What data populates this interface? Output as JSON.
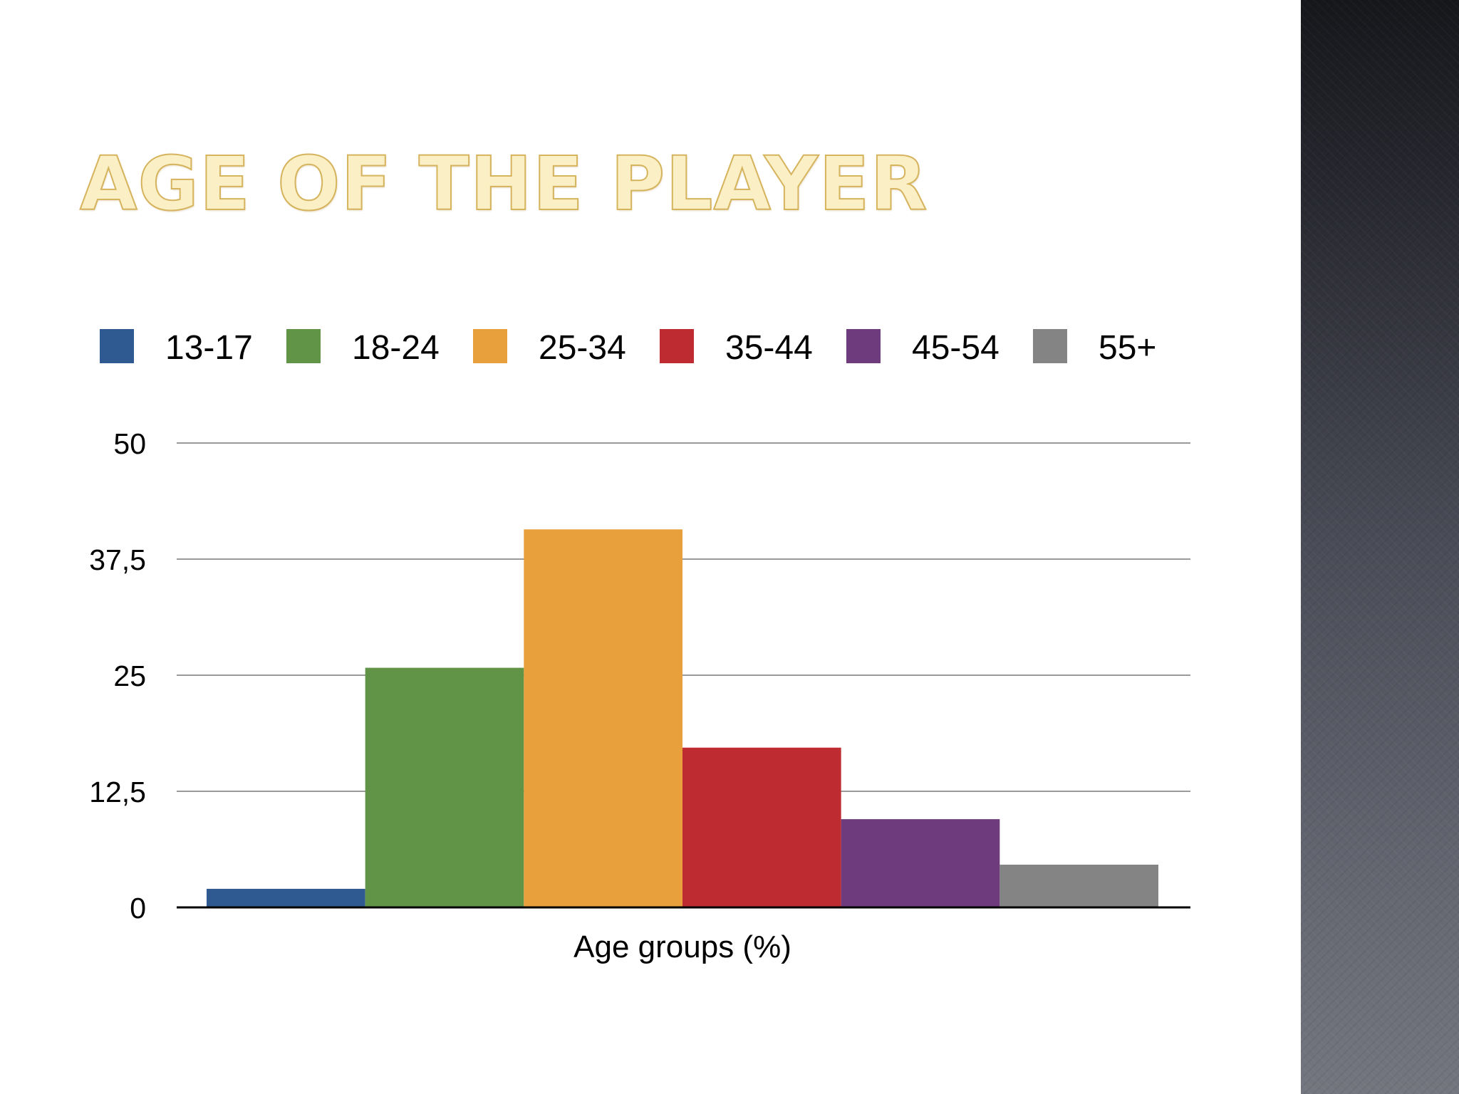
{
  "slide": {
    "title": "AGE OF THE PLAYER"
  },
  "chart_data": {
    "type": "bar",
    "xlabel": "Age groups (%)",
    "ylabel": "",
    "ylim": [
      0,
      50
    ],
    "yticks": [
      0,
      12.5,
      25,
      37.5,
      50
    ],
    "ytick_labels": [
      "0",
      "12,5",
      "25",
      "37,5",
      "50"
    ],
    "grid": true,
    "legend_position": "top",
    "series": [
      {
        "name": "13-17",
        "value": 2,
        "color": "#2e5a91"
      },
      {
        "name": "18-24",
        "value": 25.8,
        "color": "#619447"
      },
      {
        "name": "25-34",
        "value": 40.7,
        "color": "#e7a03c"
      },
      {
        "name": "35-44",
        "value": 17.2,
        "color": "#be2c32"
      },
      {
        "name": "45-54",
        "value": 9.5,
        "color": "#6e3c7c"
      },
      {
        "name": "55+",
        "value": 4.6,
        "color": "#848484"
      }
    ]
  }
}
